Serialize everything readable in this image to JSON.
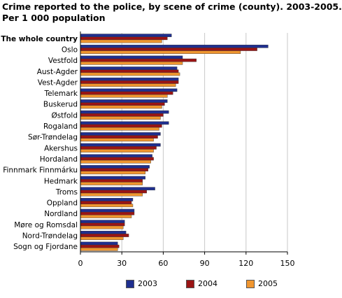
{
  "chart_data": {
    "type": "bar",
    "orientation": "horizontal",
    "title": "Crime reported to the police, by scene of crime (county). 2003-2005.",
    "subtitle": "Per 1 000 population",
    "categories": [
      "The whole country",
      "Oslo",
      "Vestfold",
      "Aust-Agder",
      "Vest-Agder",
      "Telemark",
      "Buskerud",
      "Østfold",
      "Rogaland",
      "Sør-Trøndelag",
      "Akershus",
      "Hordaland",
      "Finnmark Finnmárku",
      "Hedmark",
      "Troms",
      "Oppland",
      "Nordland",
      "Møre og Romsdal",
      "Nord-Trøndelag",
      "Sogn og Fjordane"
    ],
    "bold_category": "The whole country",
    "series": [
      {
        "name": "2003",
        "color": "#1f2f8f",
        "values": [
          66,
          136,
          74,
          70,
          71,
          70,
          63,
          64,
          64,
          58,
          58,
          52,
          50,
          47,
          54,
          38,
          39,
          32,
          33,
          27
        ]
      },
      {
        "name": "2004",
        "color": "#9a1414",
        "values": [
          63,
          128,
          84,
          71,
          71,
          67,
          61,
          60,
          59,
          56,
          55,
          53,
          49,
          45,
          48,
          37,
          39,
          32,
          35,
          28
        ]
      },
      {
        "name": "2005",
        "color": "#f0962f",
        "values": [
          59,
          116,
          74,
          72,
          69,
          63,
          59,
          58,
          57,
          53,
          53,
          51,
          47,
          45,
          45,
          38,
          37,
          31,
          31,
          27
        ]
      }
    ],
    "xlim": [
      0,
      150
    ],
    "xticks": [
      0,
      30,
      60,
      90,
      120,
      150
    ],
    "grid": true,
    "legend_position": "bottom"
  }
}
